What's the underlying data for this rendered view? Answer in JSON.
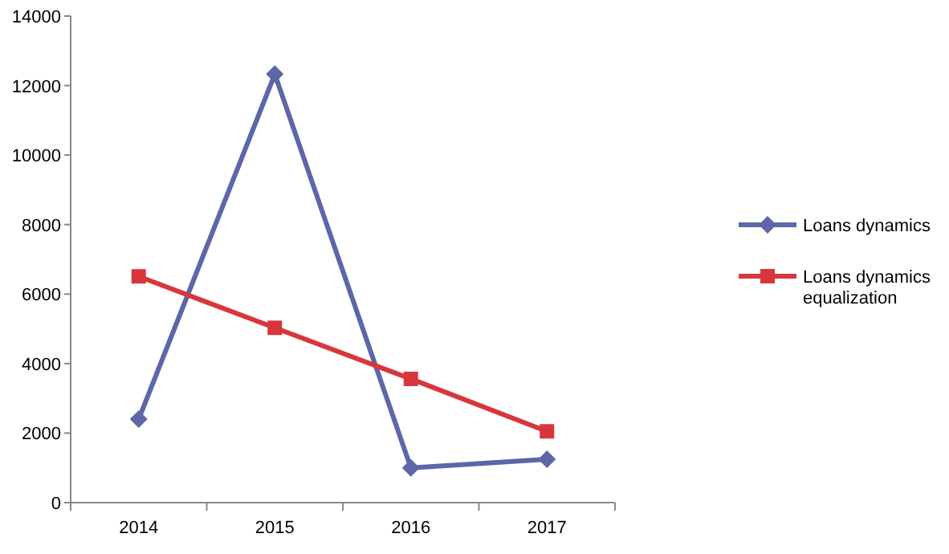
{
  "chart_data": {
    "type": "line",
    "categories": [
      "2014",
      "2015",
      "2016",
      "2017"
    ],
    "series": [
      {
        "name": "Loans dynamics",
        "color": "#5b67a8",
        "marker": "diamond",
        "values": [
          2400,
          12330,
          1000,
          1250
        ]
      },
      {
        "name": "Loans dynamics equalization",
        "color": "#d7373c",
        "marker": "square",
        "values": [
          6510,
          5030,
          3560,
          2050
        ]
      }
    ],
    "ylim": [
      0,
      14000
    ],
    "yticks": [
      0,
      2000,
      4000,
      6000,
      8000,
      10000,
      12000,
      14000
    ],
    "grid": false,
    "legend": "right"
  }
}
